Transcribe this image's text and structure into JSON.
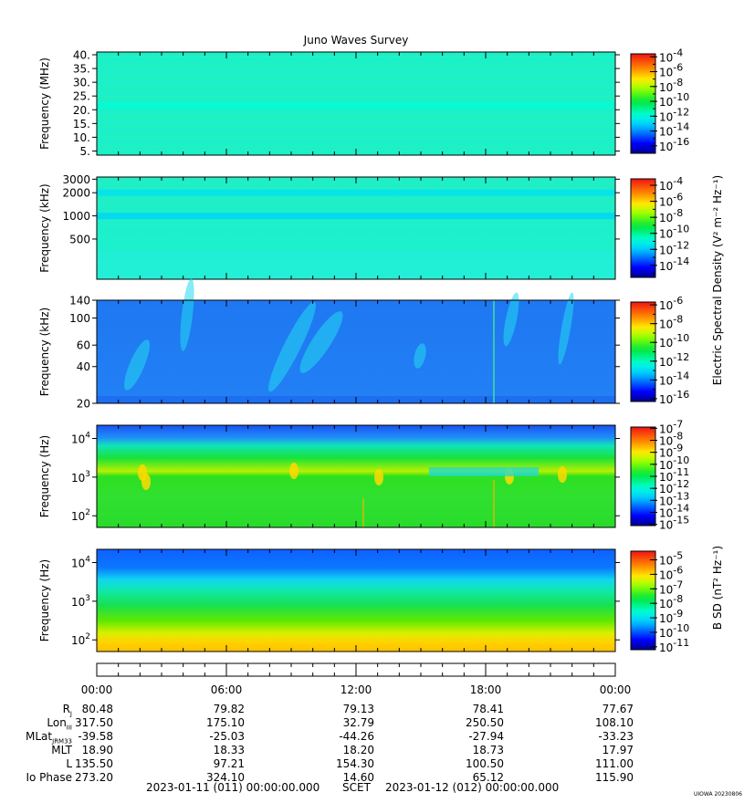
{
  "title": "Juno Waves Survey",
  "chart_data": [
    {
      "type": "heatmap",
      "ylabel": "Frequency (MHz)",
      "yscale": "linear",
      "ylim": [
        3.5,
        41
      ],
      "yticks": [
        "40.",
        "35.",
        "30.",
        "25.",
        "20.",
        "15.",
        "10.",
        "5."
      ],
      "ytick_values": [
        40,
        35,
        30,
        25,
        20,
        15,
        10,
        5
      ],
      "colorbar": {
        "ticks": [
          "10-4",
          "10-6",
          "10-8",
          "10-10",
          "10-12",
          "10-14",
          "10-16"
        ],
        "exponents": [
          -4,
          -6,
          -8,
          -10,
          -12,
          -14,
          -16
        ],
        "range": [
          -17,
          -3.6
        ]
      },
      "features": [
        {
          "kind": "band",
          "value": 21.5,
          "level": -11.8
        }
      ]
    },
    {
      "type": "heatmap",
      "ylabel": "Frequency (kHz)",
      "yscale": "log",
      "ylim": [
        150,
        3200
      ],
      "yticks": [
        "3000",
        "2000",
        "1000",
        "500"
      ],
      "ytick_values": [
        3000,
        2000,
        1000,
        500
      ],
      "colorbar": {
        "ticks": [
          "10-4",
          "10-6",
          "10-8",
          "10-10",
          "10-12",
          "10-14"
        ],
        "exponents": [
          -4,
          -6,
          -8,
          -10,
          -12,
          -14
        ],
        "range": [
          -15.5,
          -3.2
        ]
      },
      "features": [
        {
          "kind": "band",
          "value": 2000,
          "level": -11.5
        },
        {
          "kind": "band",
          "value": 1000,
          "level": -11.8
        }
      ]
    },
    {
      "type": "heatmap",
      "ylabel": "Frequency (kHz)",
      "yscale": "log",
      "ylim": [
        20,
        140
      ],
      "yticks": [
        "140",
        "100",
        "60",
        "40",
        "20"
      ],
      "ytick_values": [
        140,
        100,
        60,
        40,
        20
      ],
      "colorbar": {
        "ticks": [
          "10-6",
          "10-8",
          "10-10",
          "10-12",
          "10-14",
          "10-16"
        ],
        "exponents": [
          -6,
          -8,
          -10,
          -12,
          -14,
          -16
        ],
        "range": [
          -16.3,
          -5.7
        ]
      }
    },
    {
      "type": "heatmap",
      "ylabel": "Frequency (Hz)",
      "yscale": "log",
      "ylim": [
        50,
        22000
      ],
      "yticks": [
        "10^4",
        "10^3",
        "10^2"
      ],
      "ytick_values": [
        10000,
        1000,
        100
      ],
      "colorbar": {
        "ticks": [
          "10-7",
          "10-8",
          "10-9",
          "10-10",
          "10-11",
          "10-12",
          "10-13",
          "10-14",
          "10-15"
        ],
        "exponents": [
          -7,
          -8,
          -9,
          -10,
          -11,
          -12,
          -13,
          -14,
          -15
        ],
        "range": [
          -15.1,
          -6.9
        ]
      }
    },
    {
      "type": "heatmap",
      "ylabel": "Frequency (Hz)",
      "yscale": "log",
      "ylim": [
        50,
        22000
      ],
      "yticks": [
        "10^4",
        "10^3",
        "10^2"
      ],
      "ytick_values": [
        10000,
        1000,
        100
      ],
      "colorbar": {
        "ticks": [
          "10-5",
          "10-6",
          "10-7",
          "10-8",
          "10-9",
          "10-10",
          "10-11"
        ],
        "exponents": [
          -5,
          -6,
          -7,
          -8,
          -9,
          -10,
          -11
        ],
        "range": [
          -11.2,
          -4.4
        ]
      }
    }
  ],
  "colorbar_labels": {
    "electric": "Electric Spectral Density (V² m⁻² Hz⁻¹)",
    "magnetic": "B SD (nT² Hz⁻¹)"
  },
  "time_axis": {
    "ticks": [
      "00:00",
      "06:00",
      "12:00",
      "18:00",
      "00:00"
    ],
    "hours": [
      0,
      6,
      12,
      18,
      24
    ]
  },
  "ephemeris": [
    {
      "label": "R",
      "sub": "J",
      "values": [
        "80.48",
        "79.82",
        "79.13",
        "78.41",
        "77.67"
      ]
    },
    {
      "label": "Lon",
      "sub": "III",
      "values": [
        "317.50",
        "175.10",
        "32.79",
        "250.50",
        "108.10"
      ]
    },
    {
      "label": "MLat",
      "sub": "JRM33",
      "values": [
        "-39.58",
        "-25.03",
        "-44.26",
        "-27.94",
        "-33.23"
      ]
    },
    {
      "label": "MLT",
      "sub": "",
      "values": [
        "18.90",
        "18.33",
        "18.20",
        "18.73",
        "17.97"
      ]
    },
    {
      "label": "L",
      "sub": "",
      "values": [
        "135.50",
        "97.21",
        "154.30",
        "100.50",
        "111.00"
      ]
    },
    {
      "label": "Io Phase",
      "sub": "",
      "values": [
        "273.20",
        "324.10",
        "14.60",
        "65.12",
        "115.90"
      ]
    }
  ],
  "footer": {
    "start": "2023-01-11 (011) 00:00:00.000",
    "frame": "SCET",
    "end": "2023-01-12 (012) 00:00:00.000"
  },
  "stamp": "UIOWA 20230806"
}
